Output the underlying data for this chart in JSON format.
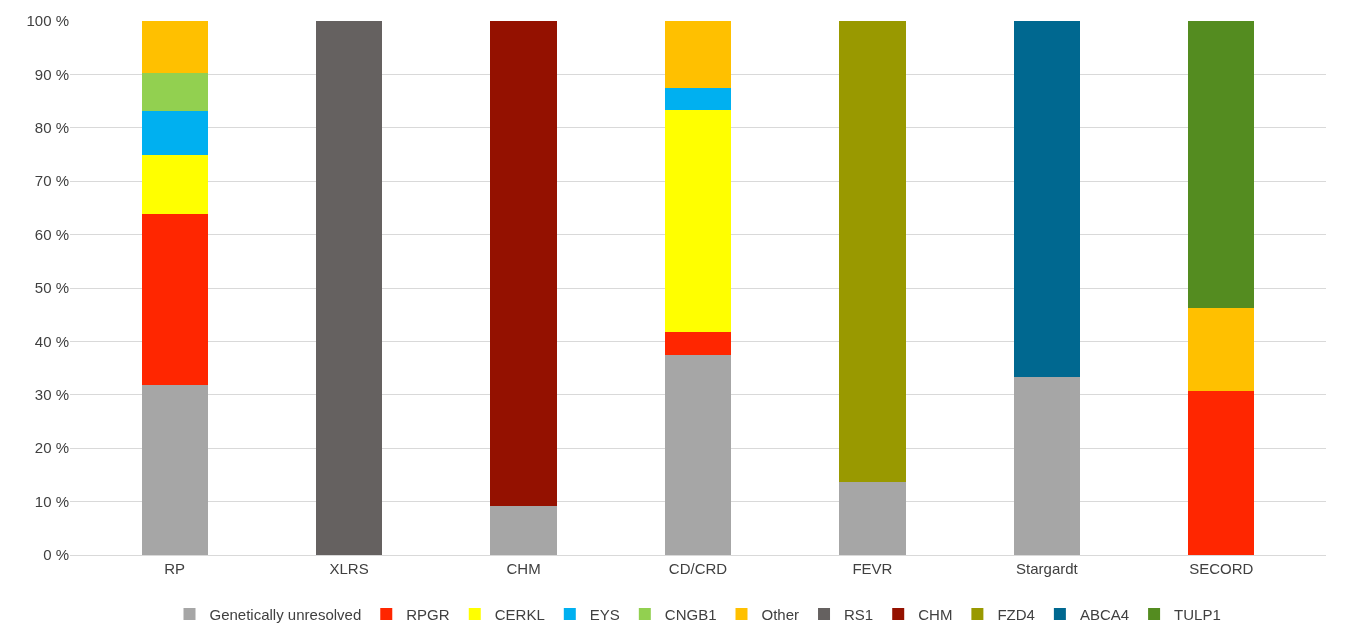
{
  "chart_data": {
    "type": "bar",
    "stacked": true,
    "categories": [
      "RP",
      "XLRS",
      "CHM",
      "CD/CRD",
      "FEVR",
      "Stargardt",
      "SECORD"
    ],
    "series": [
      {
        "name": "Genetically unresolved",
        "color": "#a6a6a6",
        "values": [
          31.9,
          null,
          9.1,
          37.5,
          13.6,
          33.3,
          null
        ]
      },
      {
        "name": "RPGR",
        "color": "#ff2600",
        "values": [
          31.9,
          null,
          null,
          4.2,
          null,
          null,
          30.8
        ]
      },
      {
        "name": "CERKL",
        "color": "#ffff00",
        "values": [
          11.1,
          null,
          null,
          41.6,
          null,
          null,
          null
        ]
      },
      {
        "name": "EYS",
        "color": "#00b0f0",
        "values": [
          8.3,
          null,
          null,
          4.2,
          null,
          null,
          null
        ]
      },
      {
        "name": "CNGB1",
        "color": "#92d050",
        "values": [
          7.0,
          null,
          null,
          null,
          null,
          null,
          null
        ]
      },
      {
        "name": "Other",
        "color": "#ffc000",
        "values": [
          9.8,
          null,
          null,
          12.5,
          null,
          null,
          15.4
        ]
      },
      {
        "name": "RS1",
        "color": "#656160",
        "values": [
          null,
          100,
          null,
          null,
          null,
          null,
          null
        ]
      },
      {
        "name": "CHM",
        "color": "#941100",
        "values": [
          null,
          null,
          90.9,
          null,
          null,
          null,
          null
        ]
      },
      {
        "name": "FZD4",
        "color": "#999900",
        "values": [
          null,
          null,
          null,
          null,
          86.4,
          null,
          null
        ]
      },
      {
        "name": "ABCA4",
        "color": "#006890",
        "values": [
          null,
          null,
          null,
          null,
          null,
          66.7,
          null
        ]
      },
      {
        "name": "TULP1",
        "color": "#548c20",
        "values": [
          null,
          null,
          null,
          null,
          null,
          null,
          53.8
        ]
      }
    ],
    "ylim": [
      0,
      100
    ],
    "yticks": [
      {
        "value": 0,
        "label": "0 %"
      },
      {
        "value": 10,
        "label": "10 %"
      },
      {
        "value": 20,
        "label": "20 %"
      },
      {
        "value": 30,
        "label": "30 %"
      },
      {
        "value": 40,
        "label": "40 %"
      },
      {
        "value": 50,
        "label": "50 %"
      },
      {
        "value": 60,
        "label": "60 %"
      },
      {
        "value": 70,
        "label": "70 %"
      },
      {
        "value": 80,
        "label": "80 %"
      },
      {
        "value": 90,
        "label": "90 %"
      },
      {
        "value": 100,
        "label": "100 %"
      }
    ],
    "grid": "y",
    "legend": "bottom"
  }
}
